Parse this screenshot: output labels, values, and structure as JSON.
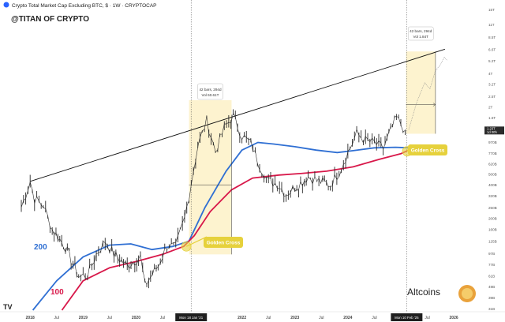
{
  "header": {
    "title": "Crypto Total Market Cap Excluding BTC, $ · 1W · CRYPTOCAP",
    "watermark": "@TITAN OF CRYPTO"
  },
  "chart_data": {
    "type": "line",
    "yscale": "log",
    "ylim": [
      "30B",
      "15T"
    ],
    "y_ticks": [
      "15T",
      "11T",
      "8.5T",
      "6.6T",
      "5.2T",
      "4T",
      "3.2T",
      "2.5T",
      "2T",
      "1.6T",
      "970B",
      "770B",
      "620B",
      "500B",
      "400B",
      "320B",
      "250B",
      "200B",
      "160B",
      "125B",
      "97B",
      "77B",
      "61B",
      "49B",
      "39B",
      "31B"
    ],
    "x_ticks": [
      "2018",
      "Jul",
      "2019",
      "Jul",
      "2020",
      "Jul",
      "2022",
      "Jul",
      "2023",
      "Jul",
      "2024",
      "Jul",
      "Jul",
      "2026"
    ],
    "x_markers": [
      "Mon 18 Jan '21",
      "Mon 10 Feb '25"
    ],
    "price_label": [
      "1.23T",
      "1d 00h"
    ],
    "price_series": {
      "name": "",
      "points": [
        [
          "2017-11",
          250
        ],
        [
          "2018-01",
          430
        ],
        [
          "2018-02",
          300
        ],
        [
          "2018-04",
          260
        ],
        [
          "2018-06",
          160
        ],
        [
          "2018-09",
          110
        ],
        [
          "2018-12",
          60
        ],
        [
          "2019-02",
          62
        ],
        [
          "2019-04",
          95
        ],
        [
          "2019-06",
          125
        ],
        [
          "2019-08",
          95
        ],
        [
          "2019-11",
          75
        ],
        [
          "2020-02",
          90
        ],
        [
          "2020-03",
          50
        ],
        [
          "2020-06",
          75
        ],
        [
          "2020-08",
          115
        ],
        [
          "2020-10",
          110
        ],
        [
          "2020-12",
          200
        ],
        [
          "2021-01",
          320
        ],
        [
          "2021-03",
          900
        ],
        [
          "2021-05",
          1500
        ],
        [
          "2021-07",
          800
        ],
        [
          "2021-09",
          1300
        ],
        [
          "2021-11",
          1650
        ],
        [
          "2022-01",
          1100
        ],
        [
          "2022-03",
          950
        ],
        [
          "2022-05",
          600
        ],
        [
          "2022-07",
          430
        ],
        [
          "2022-09",
          410
        ],
        [
          "2022-11",
          330
        ],
        [
          "2023-01",
          380
        ],
        [
          "2023-04",
          470
        ],
        [
          "2023-06",
          440
        ],
        [
          "2023-09",
          400
        ],
        [
          "2023-11",
          520
        ],
        [
          "2024-01",
          780
        ],
        [
          "2024-03",
          1150
        ],
        [
          "2024-05",
          1000
        ],
        [
          "2024-07",
          950
        ],
        [
          "2024-09",
          850
        ],
        [
          "2024-12",
          1600
        ],
        [
          "2025-02",
          1230
        ]
      ]
    },
    "series": [
      {
        "name": "200",
        "color": "#2f6fd3"
      },
      {
        "name": "100",
        "color": "#d8184a"
      }
    ],
    "annotations": [
      {
        "type": "trendline",
        "from": [
          "2018-01",
          430
        ],
        "to": [
          "2025-11",
          6600
        ]
      },
      {
        "type": "projection",
        "label_line1": "42 bars, 294d",
        "label_line2": "Vol 1.84T",
        "from": "2025-02",
        "to": "2025-11"
      },
      {
        "type": "measure",
        "label_line1": "42 bars, 294d",
        "label_line2": "Vol 60.61T",
        "from": "2021-01",
        "to": "2021-11"
      },
      {
        "type": "callout",
        "text": "Golden Cross"
      },
      {
        "type": "callout",
        "text": "Golden Cross"
      }
    ],
    "footer_text": "Altcoins"
  },
  "colors": {
    "price": "#2a2a2a",
    "ma200": "#2f6fd3",
    "ma100": "#d8184a",
    "highlight": "#fdf3cf",
    "callout": "#e6d13c"
  }
}
